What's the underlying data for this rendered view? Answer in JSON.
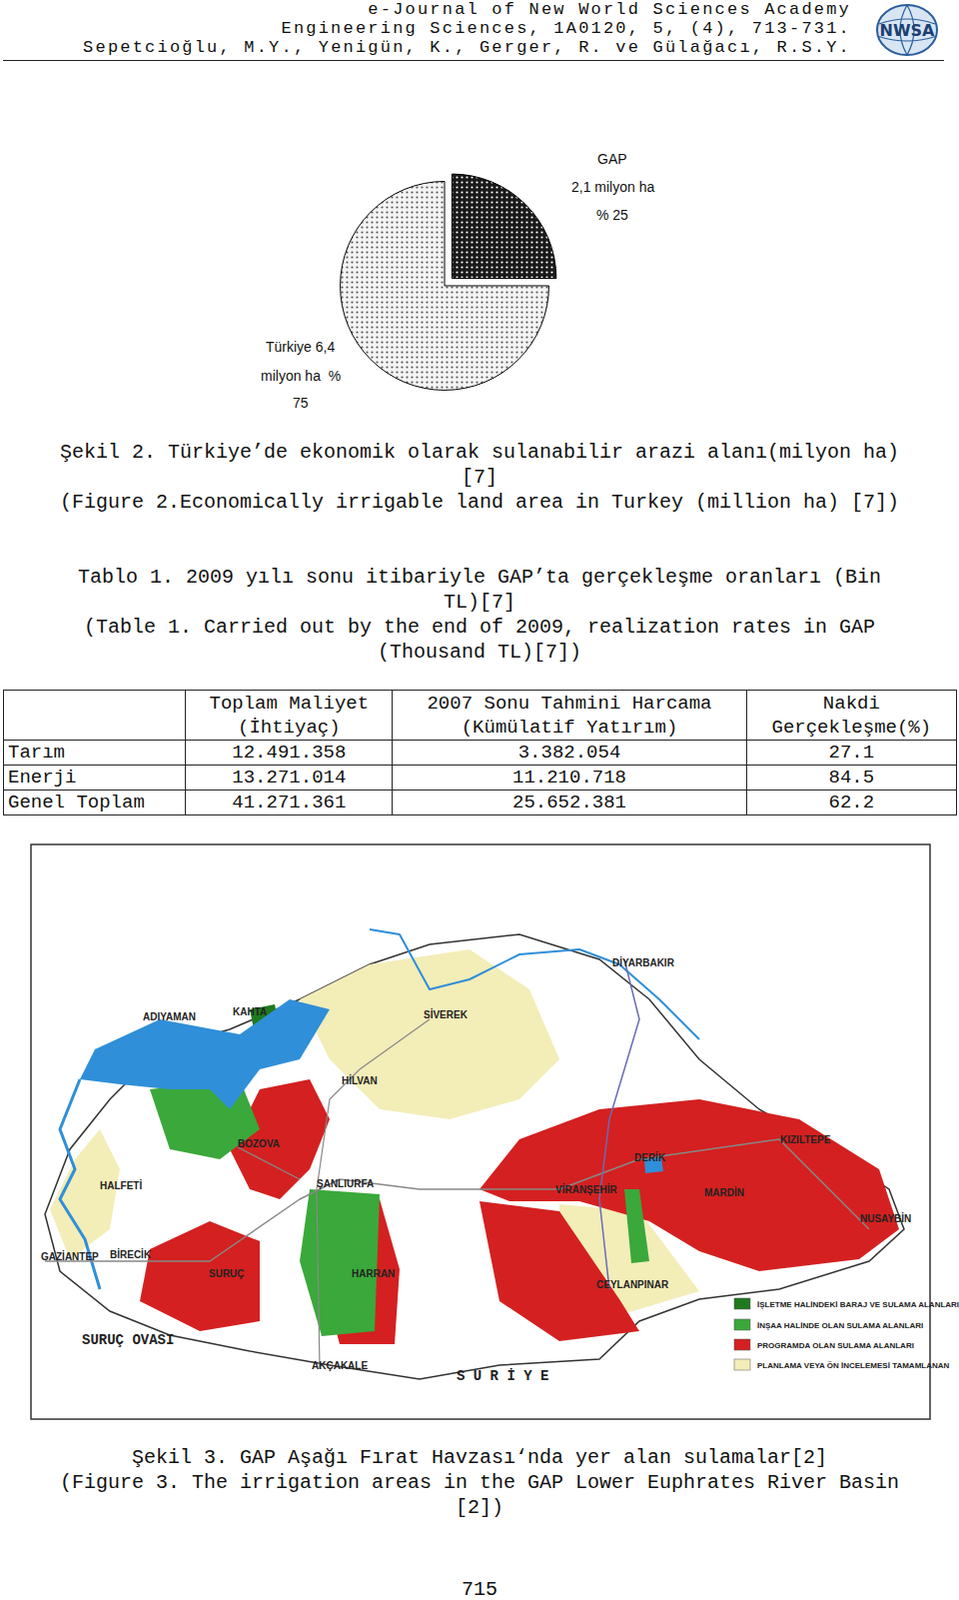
{
  "header": {
    "lines": [
      "e-Journal of New World Sciences Academy",
      "Engineering Sciences, 1A0120, 5, (4), 713-731.",
      "Sepetcioğlu, M.Y., Yenigün, K., Gerger, R. ve Gülağacı, R.S.Y."
    ],
    "logo": "NWSA"
  },
  "chart_data": {
    "type": "pie",
    "labels": [
      [
        "GAP",
        "2,1 milyon ha",
        "% 25"
      ],
      [
        "Türkiye 6,4",
        "milyon ha  %",
        "75"
      ]
    ],
    "values": [
      25,
      75
    ],
    "colors": [
      "#1a1a1a",
      "#f4f4f4"
    ],
    "marker": "dotted"
  },
  "figure2_caption": [
    "Şekil 2. Türkiye’de ekonomik olarak sulanabilir arazi alanı(milyon ha)",
    "[7]",
    "(Figure 2.Economically irrigable land area in Turkey (million ha) [7])"
  ],
  "table1_caption": [
    "Tablo 1. 2009 yılı sonu itibariyle GAP’ta gerçekleşme oranları (Bin",
    "TL)[7]",
    "(Table 1. Carried out by the end of 2009, realization rates in GAP",
    "(Thousand TL)[7])"
  ],
  "table": {
    "header": [
      [
        "",
        ""
      ],
      [
        "Toplam Maliyet",
        "(İhtiyaç)"
      ],
      [
        "2007 Sonu Tahmini Harcama",
        "(Kümülatif Yatırım)"
      ],
      [
        "Nakdi",
        "Gerçekleşme(%)"
      ]
    ],
    "rows": [
      [
        "Tarım",
        "12.491.358",
        "3.382.054",
        "27.1"
      ],
      [
        "Enerji",
        "13.271.014",
        "11.210.718",
        "84.5"
      ],
      [
        "Genel Toplam",
        "41.271.361",
        "25.652.381",
        "62.2"
      ]
    ]
  },
  "map": {
    "labels": [
      "DİYARBAKIR",
      "ADIYAMAN",
      "KAHTA",
      "SİVEREK",
      "HİLVAN",
      "BOZOVA",
      "HALFETİ",
      "GAZİANTEP",
      "BİRECİK",
      "SURUÇ",
      "ŞANLIURFA",
      "HARRAN",
      "AKÇAKALE",
      "SURUÇ OVASI",
      "S U R İ Y E",
      "VİRANŞEHİR",
      "DERİK",
      "KIZILTEPE",
      "MARDİN",
      "NUSAYBİN",
      "CEYLANPINAR"
    ],
    "legend": [
      {
        "text": "İŞLETME HALİNDEKİ BARAJ VE SULAMA ALANLARI",
        "color": "#1f7a1f"
      },
      {
        "text": "İNŞAA HALİNDE OLAN SULAMA ALANLARI",
        "color": "#3aa83a"
      },
      {
        "text": "PROGRAMDA OLAN SULAMA ALANLARI",
        "color": "#d42020"
      },
      {
        "text": "PLANLAMA VEYA ÖN İNCELEMESİ TAMAMLANAN",
        "color": "#f3edb8"
      }
    ]
  },
  "figure3_caption": [
    "Şekil 3. GAP Aşağı Fırat Havzası‘nda yer alan sulamalar[2]",
    "(Figure 3. The irrigation areas in the GAP Lower Euphrates River Basin",
    "[2])"
  ],
  "page_number": "715"
}
